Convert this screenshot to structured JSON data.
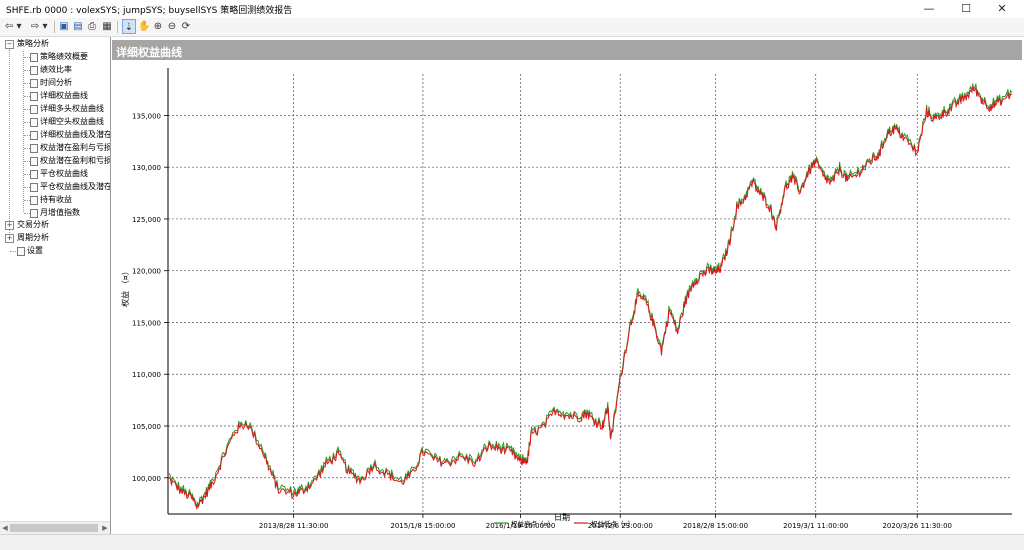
{
  "window": {
    "title": "SHFE.rb 0000 : volexSYS; jumpSYS; buysellSYS 策略回测绩效报告",
    "minimize": "—",
    "maximize": "☐",
    "close": "✕"
  },
  "toolbar": {
    "back": "⇦",
    "back_drop": "▾",
    "forward": "⇨",
    "forward_drop": "▾",
    "save": "▣",
    "export": "▤",
    "print": "⎙",
    "view": "▦",
    "cursor": "⇣",
    "pan": "✋",
    "zoom_in": "⊕",
    "zoom_out": "⊖",
    "refresh": "⟳"
  },
  "sidebar": {
    "groups": [
      {
        "label": "策略分析",
        "expander": "−",
        "items": [
          "策略绩效概要",
          "绩效比率",
          "时间分析",
          "详细权益曲线",
          "详细多头权益曲线",
          "详细空头权益曲线",
          "详细权益曲线及潜在",
          "权益潜在盈利与亏损",
          "权益潜在盈利和亏损",
          "平仓权益曲线",
          "平仓权益曲线及潜在",
          "持有收益",
          "月增值指数"
        ]
      },
      {
        "label": "交易分析",
        "expander": "+"
      },
      {
        "label": "周期分析",
        "expander": "+"
      }
    ],
    "settings": "设置"
  },
  "panel": {
    "title": "详细权益曲线"
  },
  "chart_data": {
    "type": "line",
    "title": "",
    "xlabel": "日期",
    "ylabel": "权益 （¤）",
    "ylim": [
      96500,
      139000
    ],
    "yticks": [
      100000,
      105000,
      110000,
      115000,
      120000,
      125000,
      130000,
      135000
    ],
    "ytick_labels": [
      "100,000",
      "105,000",
      "110,000",
      "115,000",
      "120,000",
      "125,000",
      "130,000",
      "135,000"
    ],
    "xlim": [
      "2012-05-01",
      "2021-03-26"
    ],
    "xticks": [
      "2013-08-28",
      "2015-01-08",
      "2016-01-19",
      "2017-02-06",
      "2018-02-08",
      "2019-03-01",
      "2020-03-26"
    ],
    "xtick_labels": [
      "2013/8/28 11:30:00",
      "2015/1/8 15:00:00",
      "2016/1/19 15:00:00",
      "2017/2/6 23:00:00",
      "2018/2/8 15:00:00",
      "2019/3/1 11:00:00",
      "2020/3/26 11:30:00"
    ],
    "grid": true,
    "legend_position": "bottom",
    "series": [
      {
        "name": "权益高点（¤）",
        "color": "#2a9a2a"
      },
      {
        "name": "权益低点（¤）",
        "color": "#e0141e"
      }
    ],
    "x": [
      "2012-05-01",
      "2012-06-15",
      "2012-08-01",
      "2012-08-20",
      "2012-09-20",
      "2012-10-20",
      "2012-12-01",
      "2013-01-15",
      "2013-03-01",
      "2013-05-01",
      "2013-06-01",
      "2013-07-01",
      "2013-08-28",
      "2013-10-01",
      "2013-11-15",
      "2014-01-01",
      "2014-02-15",
      "2014-04-01",
      "2014-05-15",
      "2014-07-01",
      "2014-09-01",
      "2014-10-15",
      "2014-12-01",
      "2015-01-08",
      "2015-03-01",
      "2015-04-15",
      "2015-06-01",
      "2015-08-01",
      "2015-09-15",
      "2015-11-01",
      "2015-12-15",
      "2016-01-19",
      "2016-02-15",
      "2016-03-01",
      "2016-04-15",
      "2016-06-01",
      "2016-07-15",
      "2016-09-01",
      "2016-10-01",
      "2016-11-01",
      "2016-12-01",
      "2016-12-20",
      "2017-01-01",
      "2017-02-06",
      "2017-03-15",
      "2017-04-15",
      "2017-05-15",
      "2017-06-15",
      "2017-07-15",
      "2017-08-15",
      "2017-09-15",
      "2017-10-15",
      "2017-11-15",
      "2017-12-15",
      "2018-01-15",
      "2018-02-08",
      "2018-03-01",
      "2018-04-01",
      "2018-05-01",
      "2018-06-01",
      "2018-07-01",
      "2018-08-01",
      "2018-09-01",
      "2018-10-01",
      "2018-11-01",
      "2018-12-01",
      "2019-01-01",
      "2019-02-01",
      "2019-03-01",
      "2019-04-01",
      "2019-05-01",
      "2019-06-01",
      "2019-07-01",
      "2019-08-01",
      "2019-09-01",
      "2019-10-01",
      "2019-11-01",
      "2019-12-01",
      "2020-01-01",
      "2020-02-01",
      "2020-03-26",
      "2020-05-01",
      "2020-06-01",
      "2020-07-01",
      "2020-08-01",
      "2020-09-01",
      "2020-10-01",
      "2020-11-01",
      "2020-12-01",
      "2021-01-01",
      "2021-02-01",
      "2021-03-26"
    ],
    "y": [
      100000,
      98800,
      98000,
      97200,
      98200,
      99500,
      102000,
      104500,
      105300,
      102500,
      100500,
      98800,
      98400,
      98700,
      99600,
      101300,
      102200,
      100400,
      99700,
      101200,
      100200,
      99500,
      100400,
      102500,
      101600,
      101400,
      102000,
      101400,
      103000,
      102800,
      102400,
      101500,
      101700,
      104200,
      104800,
      106500,
      106000,
      105800,
      106200,
      105400,
      105000,
      106800,
      103500,
      109500,
      114500,
      117500,
      117000,
      114800,
      112200,
      116200,
      114000,
      117000,
      118800,
      119600,
      120000,
      119800,
      120200,
      122500,
      126000,
      127000,
      128500,
      127300,
      126300,
      124200,
      127800,
      128900,
      127600,
      129500,
      130500,
      129000,
      128400,
      129800,
      128700,
      129200,
      129800,
      130600,
      131200,
      133200,
      133700,
      132900,
      131300,
      135300,
      134600,
      135100,
      135600,
      136300,
      136800,
      137600,
      136400,
      135800,
      136200,
      137000
    ]
  }
}
